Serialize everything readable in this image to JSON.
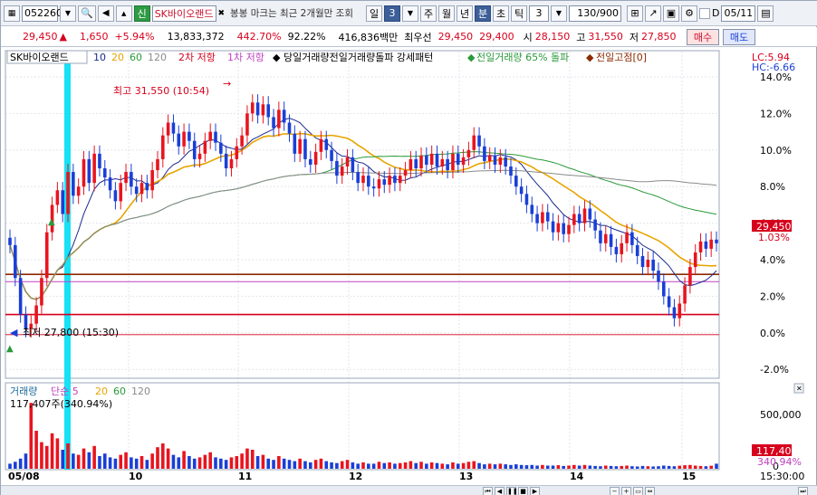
{
  "toolbar": {
    "code": "052260",
    "name_tag": "신",
    "stock_name": "SK바이오랜드",
    "notice": "봉봉 마크는 최근 2개월만 조회",
    "period_day": "일",
    "period_num": "3",
    "period_week": "주",
    "period_month": "월",
    "period_year": "년",
    "period_minute": "분",
    "period_second": "초",
    "period_tick": "틱",
    "count": "3",
    "range": "130/900",
    "checkbox_label": "D",
    "date": "05/11"
  },
  "quote": {
    "price": "29,450",
    "arrow": "▲",
    "change": "1,650",
    "rate": "+5.94%",
    "volume": "13,833,372",
    "vol_rate": "442.70%",
    "ratio": "92.22%",
    "amount": "416,836백만",
    "best_label": "최우선",
    "ask": "29,450",
    "bid": "29,400",
    "open_label": "시",
    "open": "28,150",
    "high_label": "고",
    "high": "31,550",
    "low_label": "저",
    "low": "27,850",
    "buy_label": "매수",
    "sell_label": "매도"
  },
  "legend": {
    "name": "SK바이오랜드",
    "ma": [
      "10",
      "20",
      "60",
      "120"
    ],
    "resist2": "2차 저항",
    "resist1": "1차 저항",
    "pattern": "당일거래량전일거래량돌파 강세패턴",
    "prev_vol": "전일거래량 65% 돌파",
    "prev_high": "전일고점[0]",
    "lc": "LC:5.94",
    "hc": "HC:-6.66"
  },
  "volume_legend": {
    "title": "거래량",
    "simple": "단순 5",
    "ma": [
      "20",
      "60",
      "120"
    ],
    "current": "117,407주(340.94%)"
  },
  "colors": {
    "up": "#e8141e",
    "down": "#1a3fd6",
    "ma10": "#1a2a8c",
    "ma20": "#e8a400",
    "ma60": "#2a9a3a",
    "ma120": "#8a8a8a",
    "resist2": "#d6001c",
    "resist1": "#8b2a00",
    "prev_high": "#c040c0",
    "cursor": "#17e1f5"
  },
  "chart_data": {
    "type": "candlestick",
    "interval_minutes": 3,
    "y_axis_ticks": [
      "14.0%",
      "12.0%",
      "10.0%",
      "8.0%",
      "6.0%",
      "4.0%",
      "2.0%",
      "0.0%",
      "-2.0%"
    ],
    "price_label": "29,450",
    "price_pct": "1.03%",
    "high_note": "최고 31,550 (10:54)",
    "low_note": "최저 27,800 (15:30)",
    "x_labels": [
      "05/08",
      "10",
      "11",
      "12",
      "13",
      "14",
      "15",
      "15:30:00"
    ],
    "volume_ticks": [
      "500,000",
      "0"
    ],
    "volume_now": "117,407",
    "volume_pct": "340.94%",
    "levels_pct": {
      "resist2": 1.0,
      "resist1": 3.2,
      "prev_high": 2.8,
      "base": -0.1
    },
    "closes_pct": [
      4.8,
      3.0,
      1.0,
      0.2,
      0.5,
      1.5,
      3.0,
      5.5,
      7.0,
      7.8,
      6.5,
      8.8,
      7.5,
      8.0,
      9.5,
      8.2,
      9.8,
      9.0,
      8.5,
      7.8,
      7.2,
      8.2,
      8.8,
      8.0,
      7.6,
      8.2,
      7.8,
      8.9,
      9.5,
      10.8,
      11.5,
      10.9,
      10.2,
      11.0,
      10.5,
      9.5,
      9.8,
      10.5,
      11.0,
      10.4,
      9.8,
      9.0,
      9.5,
      10.2,
      10.8,
      12.0,
      12.6,
      11.9,
      12.5,
      11.8,
      11.2,
      12.2,
      11.5,
      10.9,
      9.8,
      10.6,
      9.5,
      9.2,
      9.9,
      10.6,
      10.0,
      9.4,
      8.6,
      9.1,
      9.6,
      8.8,
      8.2,
      8.6,
      8.0,
      7.9,
      8.4,
      8.1,
      8.6,
      8.2,
      8.6,
      8.9,
      9.5,
      9.0,
      9.7,
      9.2,
      9.8,
      9.1,
      9.5,
      8.9,
      9.8,
      9.2,
      9.6,
      10.0,
      10.8,
      10.2,
      9.4,
      9.7,
      9.2,
      9.6,
      9.1,
      8.6,
      8.0,
      7.6,
      7.0,
      6.5,
      6.0,
      6.6,
      6.1,
      5.5,
      6.0,
      5.4,
      5.9,
      6.5,
      6.0,
      6.8,
      6.2,
      5.6,
      4.9,
      5.4,
      4.7,
      4.3,
      4.9,
      5.5,
      4.8,
      4.2,
      3.6,
      4.0,
      3.4,
      2.8,
      2.0,
      1.4,
      0.8,
      1.6,
      2.6,
      3.6,
      4.4,
      5.0,
      4.6,
      5.1,
      4.9
    ],
    "volumes": [
      40,
      55,
      80,
      120,
      520,
      300,
      210,
      180,
      280,
      240,
      150,
      200,
      120,
      110,
      160,
      130,
      180,
      100,
      120,
      90,
      80,
      110,
      130,
      90,
      80,
      100,
      70,
      120,
      170,
      200,
      160,
      110,
      90,
      140,
      100,
      80,
      90,
      110,
      130,
      90,
      80,
      70,
      90,
      100,
      120,
      160,
      150,
      100,
      110,
      80,
      70,
      100,
      80,
      70,
      60,
      80,
      60,
      50,
      70,
      80,
      60,
      50,
      45,
      60,
      70,
      50,
      40,
      50,
      40,
      40,
      55,
      45,
      50,
      40,
      45,
      50,
      60,
      45,
      55,
      40,
      50,
      45,
      40,
      35,
      50,
      40,
      45,
      55,
      60,
      45,
      35,
      40,
      35,
      40,
      35,
      30,
      35,
      30,
      28,
      30,
      25,
      30,
      25,
      25,
      28,
      22,
      25,
      30,
      25,
      30,
      25,
      22,
      20,
      25,
      22,
      20,
      22,
      25,
      20,
      18,
      22,
      20,
      18,
      20,
      25,
      22,
      20,
      24,
      28,
      30,
      25,
      22,
      20,
      24,
      40
    ]
  }
}
